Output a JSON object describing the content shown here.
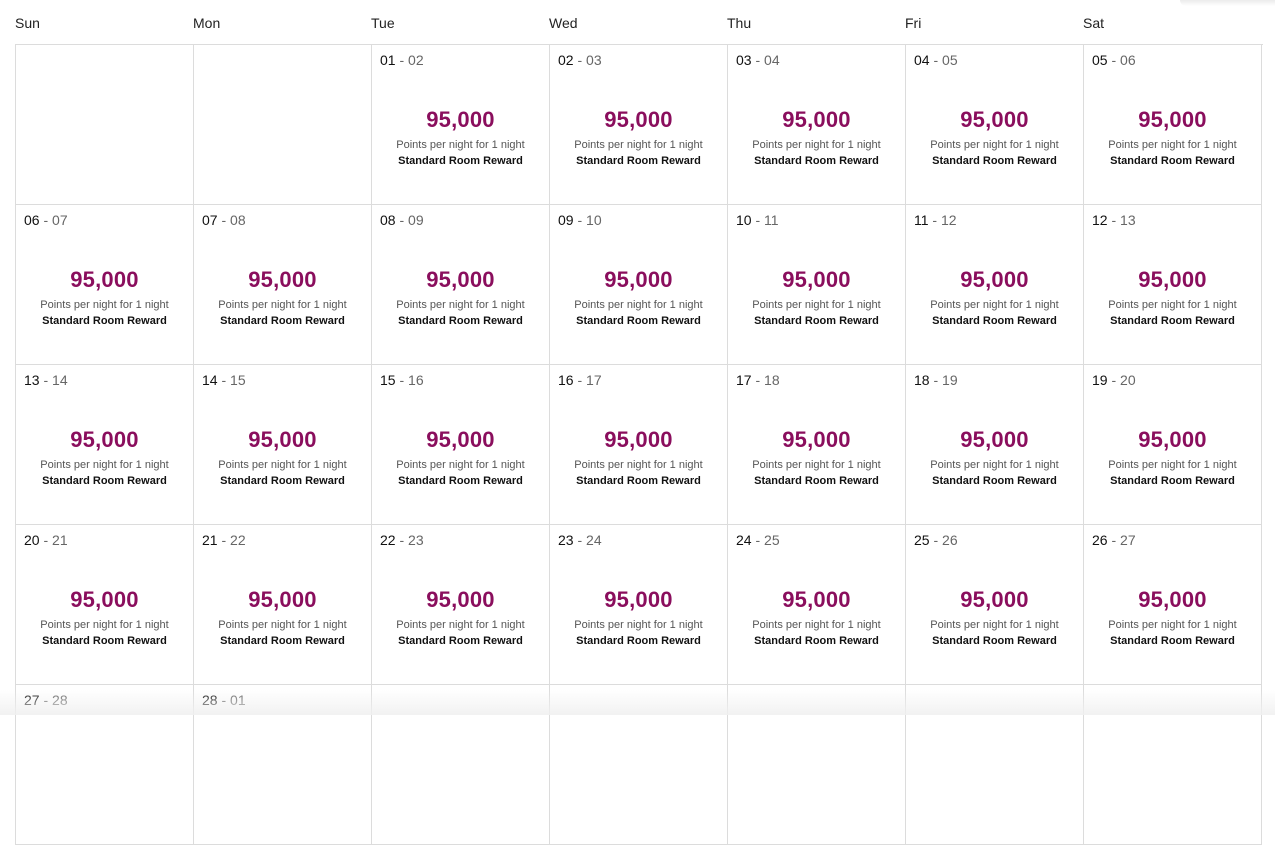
{
  "weekdays": [
    "Sun",
    "Mon",
    "Tue",
    "Wed",
    "Thu",
    "Fri",
    "Sat"
  ],
  "cell_text": {
    "points": "95,000",
    "desc": "Points per night for 1 night",
    "reward": "Standard Room Reward",
    "sep": " - "
  },
  "rows": [
    [
      null,
      null,
      {
        "from": "01",
        "to": "02",
        "points": "95,000",
        "desc": "Points per night for 1 night",
        "reward": "Standard Room Reward"
      },
      {
        "from": "02",
        "to": "03",
        "points": "95,000",
        "desc": "Points per night for 1 night",
        "reward": "Standard Room Reward"
      },
      {
        "from": "03",
        "to": "04",
        "points": "95,000",
        "desc": "Points per night for 1 night",
        "reward": "Standard Room Reward"
      },
      {
        "from": "04",
        "to": "05",
        "points": "95,000",
        "desc": "Points per night for 1 night",
        "reward": "Standard Room Reward"
      },
      {
        "from": "05",
        "to": "06",
        "points": "95,000",
        "desc": "Points per night for 1 night",
        "reward": "Standard Room Reward"
      }
    ],
    [
      {
        "from": "06",
        "to": "07",
        "points": "95,000",
        "desc": "Points per night for 1 night",
        "reward": "Standard Room Reward"
      },
      {
        "from": "07",
        "to": "08",
        "points": "95,000",
        "desc": "Points per night for 1 night",
        "reward": "Standard Room Reward"
      },
      {
        "from": "08",
        "to": "09",
        "points": "95,000",
        "desc": "Points per night for 1 night",
        "reward": "Standard Room Reward"
      },
      {
        "from": "09",
        "to": "10",
        "points": "95,000",
        "desc": "Points per night for 1 night",
        "reward": "Standard Room Reward"
      },
      {
        "from": "10",
        "to": "11",
        "points": "95,000",
        "desc": "Points per night for 1 night",
        "reward": "Standard Room Reward"
      },
      {
        "from": "11",
        "to": "12",
        "points": "95,000",
        "desc": "Points per night for 1 night",
        "reward": "Standard Room Reward"
      },
      {
        "from": "12",
        "to": "13",
        "points": "95,000",
        "desc": "Points per night for 1 night",
        "reward": "Standard Room Reward"
      }
    ],
    [
      {
        "from": "13",
        "to": "14",
        "points": "95,000",
        "desc": "Points per night for 1 night",
        "reward": "Standard Room Reward"
      },
      {
        "from": "14",
        "to": "15",
        "points": "95,000",
        "desc": "Points per night for 1 night",
        "reward": "Standard Room Reward"
      },
      {
        "from": "15",
        "to": "16",
        "points": "95,000",
        "desc": "Points per night for 1 night",
        "reward": "Standard Room Reward"
      },
      {
        "from": "16",
        "to": "17",
        "points": "95,000",
        "desc": "Points per night for 1 night",
        "reward": "Standard Room Reward"
      },
      {
        "from": "17",
        "to": "18",
        "points": "95,000",
        "desc": "Points per night for 1 night",
        "reward": "Standard Room Reward"
      },
      {
        "from": "18",
        "to": "19",
        "points": "95,000",
        "desc": "Points per night for 1 night",
        "reward": "Standard Room Reward"
      },
      {
        "from": "19",
        "to": "20",
        "points": "95,000",
        "desc": "Points per night for 1 night",
        "reward": "Standard Room Reward"
      }
    ],
    [
      {
        "from": "20",
        "to": "21",
        "points": "95,000",
        "desc": "Points per night for 1 night",
        "reward": "Standard Room Reward"
      },
      {
        "from": "21",
        "to": "22",
        "points": "95,000",
        "desc": "Points per night for 1 night",
        "reward": "Standard Room Reward"
      },
      {
        "from": "22",
        "to": "23",
        "points": "95,000",
        "desc": "Points per night for 1 night",
        "reward": "Standard Room Reward"
      },
      {
        "from": "23",
        "to": "24",
        "points": "95,000",
        "desc": "Points per night for 1 night",
        "reward": "Standard Room Reward"
      },
      {
        "from": "24",
        "to": "25",
        "points": "95,000",
        "desc": "Points per night for 1 night",
        "reward": "Standard Room Reward"
      },
      {
        "from": "25",
        "to": "26",
        "points": "95,000",
        "desc": "Points per night for 1 night",
        "reward": "Standard Room Reward"
      },
      {
        "from": "26",
        "to": "27",
        "points": "95,000",
        "desc": "Points per night for 1 night",
        "reward": "Standard Room Reward"
      }
    ],
    [
      {
        "from": "27",
        "to": "28"
      },
      {
        "from": "28",
        "to": "01"
      },
      null,
      null,
      null,
      null,
      null
    ]
  ],
  "colors": {
    "points": "#8a0e5d",
    "grid_line": "#dcdcdc"
  }
}
